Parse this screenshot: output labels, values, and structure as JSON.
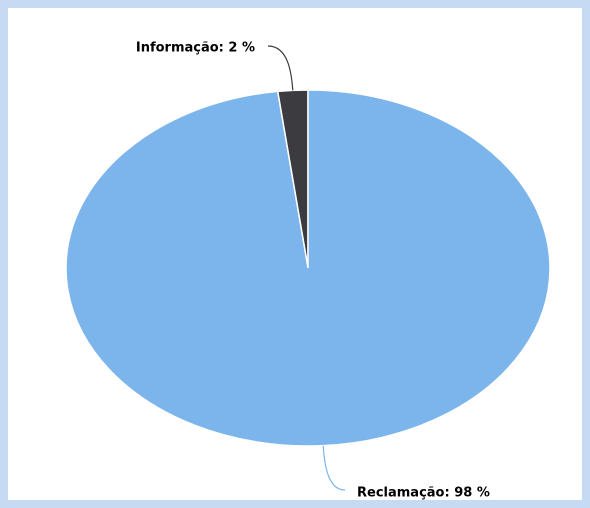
{
  "chart_data": {
    "type": "pie",
    "values": [
      2,
      98
    ],
    "value_labels": [
      "Informação: 2 %",
      "Reclamação: 98 %"
    ],
    "colors": [
      "#3b3b40",
      "#7cb5ec"
    ]
  }
}
